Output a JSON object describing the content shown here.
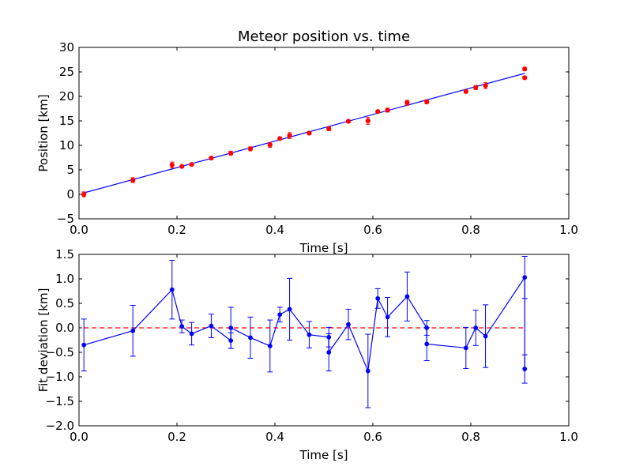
{
  "chart_data": [
    {
      "type": "scatter",
      "title": "Meteor position vs. time",
      "xlabel": "Time [s]",
      "ylabel": "Position [km]",
      "xlim": [
        0.0,
        1.0
      ],
      "ylim": [
        -5,
        30
      ],
      "xticks": [
        "0.0",
        "0.2",
        "0.4",
        "0.6",
        "0.8",
        "1.0"
      ],
      "yticks": [
        "−5",
        "0",
        "5",
        "10",
        "15",
        "20",
        "25",
        "30"
      ],
      "grid": false,
      "colors": {
        "points": "#ff0000",
        "fit_line": "#0000ff"
      },
      "series": [
        {
          "kind": "points_with_errorbars",
          "x": [
            0.01,
            0.11,
            0.19,
            0.21,
            0.23,
            0.27,
            0.31,
            0.35,
            0.39,
            0.41,
            0.43,
            0.47,
            0.51,
            0.55,
            0.59,
            0.61,
            0.63,
            0.67,
            0.71,
            0.79,
            0.81,
            0.83,
            0.91,
            0.91
          ],
          "y": [
            0.0,
            2.9,
            6.0,
            5.7,
            6.1,
            7.4,
            8.4,
            9.3,
            10.1,
            11.4,
            12.0,
            12.5,
            13.4,
            14.9,
            15.0,
            16.9,
            17.2,
            18.7,
            18.9,
            21.0,
            21.8,
            22.2,
            25.6,
            23.8
          ],
          "yerr": [
            0.5,
            0.5,
            0.6,
            0.2,
            0.2,
            0.2,
            0.4,
            0.4,
            0.5,
            0.2,
            0.6,
            0.3,
            0.4,
            0.3,
            0.7,
            0.2,
            0.4,
            0.5,
            0.4,
            0.3,
            0.4,
            0.6,
            0.3,
            0.3
          ]
        },
        {
          "kind": "fit_line",
          "x": [
            0.01,
            0.91
          ],
          "y": [
            0.3,
            24.7
          ]
        }
      ]
    },
    {
      "type": "line",
      "xlabel": "Time [s]",
      "ylabel": "Fit deviation [km]",
      "xlim": [
        0.0,
        1.0
      ],
      "ylim": [
        -2.0,
        1.5
      ],
      "xticks": [
        "0.0",
        "0.2",
        "0.4",
        "0.6",
        "0.8",
        "1.0"
      ],
      "yticks": [
        "−2.0",
        "−1.5",
        "−1.0",
        "−0.5",
        "0.0",
        "0.5",
        "1.0",
        "1.5"
      ],
      "grid": false,
      "colors": {
        "series": "#0000ff",
        "zero_line": "#ff0000"
      },
      "reference_line_y": 0.0,
      "series": [
        {
          "x": [
            0.01,
            0.11,
            0.19,
            0.21,
            0.23,
            0.27,
            0.31,
            0.31,
            0.35,
            0.39,
            0.41,
            0.43,
            0.47,
            0.51,
            0.51,
            0.55,
            0.59,
            0.61,
            0.63,
            0.67,
            0.71,
            0.71,
            0.79,
            0.81,
            0.83,
            0.91,
            0.91
          ],
          "y": [
            -0.35,
            -0.06,
            0.78,
            0.03,
            -0.12,
            0.04,
            -0.26,
            0.0,
            -0.2,
            -0.37,
            0.27,
            0.38,
            -0.14,
            -0.19,
            -0.5,
            0.07,
            -0.88,
            0.6,
            0.22,
            0.64,
            0.0,
            -0.33,
            -0.41,
            0.0,
            -0.17,
            1.03,
            -0.84
          ],
          "yerr": [
            0.53,
            0.52,
            0.6,
            0.13,
            0.23,
            0.24,
            0.16,
            0.42,
            0.42,
            0.53,
            0.15,
            0.63,
            0.27,
            0.2,
            0.38,
            0.31,
            0.75,
            0.2,
            0.4,
            0.5,
            0.15,
            0.34,
            0.42,
            0.36,
            0.64,
            0.43,
            0.29
          ]
        }
      ]
    }
  ]
}
